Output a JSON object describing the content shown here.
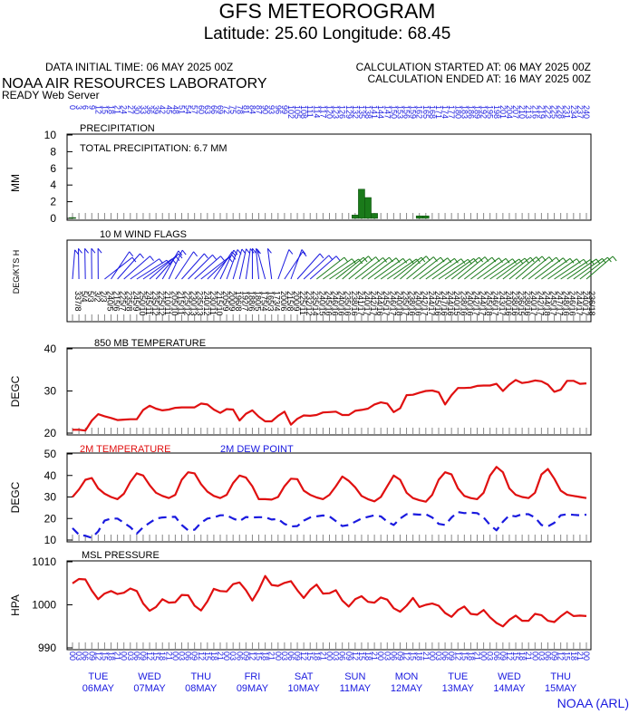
{
  "header": {
    "title": "GFS METEOROGRAM",
    "subtitle": "Latitude: 25.60 Longitude:  68.45",
    "data_initial_time": "DATA INITIAL TIME: 06 MAY 2025 00Z",
    "calc_started": "CALCULATION STARTED AT: 06 MAY 2025 00Z",
    "calc_ended": "CALCULATION ENDED AT: 16 MAY 2025 00Z",
    "lab": "NOAA AIR RESOURCES LABORATORY",
    "server": "READY Web Server",
    "footer": "NOAA (ARL)"
  },
  "forecast_hours": [
    "0",
    "3",
    "6",
    "9",
    "12",
    "15",
    "18",
    "21",
    "24",
    "27",
    "30",
    "33",
    "36",
    "39",
    "42",
    "45",
    "48",
    "51",
    "54",
    "57",
    "60",
    "63",
    "66",
    "69",
    "72",
    "75",
    "78",
    "81",
    "84",
    "87",
    "90",
    "93",
    "96",
    "99",
    "102",
    "105",
    "108",
    "111",
    "114",
    "117",
    "120",
    "123",
    "126",
    "129",
    "132",
    "135",
    "138",
    "141",
    "144",
    "147",
    "150",
    "153",
    "156",
    "159",
    "162",
    "165",
    "168",
    "171",
    "174",
    "177",
    "180",
    "183",
    "186",
    "189",
    "192",
    "195",
    "198",
    "201",
    "204",
    "207",
    "210",
    "213",
    "216",
    "219",
    "222",
    "225",
    "228",
    "231",
    "234",
    "237",
    "240"
  ],
  "utc_hours": [
    "00",
    "03",
    "06",
    "09",
    "12",
    "15",
    "18",
    "21",
    "00",
    "03",
    "06",
    "09",
    "12",
    "15",
    "18",
    "21",
    "00",
    "03",
    "06",
    "09",
    "12",
    "15",
    "18",
    "21",
    "00",
    "03",
    "06",
    "09",
    "12",
    "15",
    "18",
    "21",
    "00",
    "03",
    "06",
    "09",
    "12",
    "15",
    "18",
    "21",
    "00",
    "03",
    "06",
    "09",
    "12",
    "15",
    "18",
    "21",
    "00",
    "03",
    "06",
    "09",
    "12",
    "15",
    "18",
    "21",
    "00",
    "03",
    "06",
    "09",
    "12",
    "15",
    "18",
    "21",
    "00",
    "03",
    "06",
    "09",
    "12",
    "15",
    "18",
    "21",
    "00",
    "03",
    "06",
    "09",
    "12",
    "15",
    "18",
    "21",
    "00"
  ],
  "days": [
    {
      "dow": "TUE",
      "date": "06MAY"
    },
    {
      "dow": "WED",
      "date": "07MAY"
    },
    {
      "dow": "THU",
      "date": "08MAY"
    },
    {
      "dow": "FRI",
      "date": "09MAY"
    },
    {
      "dow": "SAT",
      "date": "10MAY"
    },
    {
      "dow": "SUN",
      "date": "11MAY"
    },
    {
      "dow": "MON",
      "date": "12MAY"
    },
    {
      "dow": "TUE",
      "date": "13MAY"
    },
    {
      "dow": "WED",
      "date": "14MAY"
    },
    {
      "dow": "THU",
      "date": "15MAY"
    }
  ],
  "chart_data": [
    {
      "type": "bar",
      "title": "PRECIPITATION",
      "annotation": "TOTAL PRECIPITATION:   6.7 MM",
      "ylabel": "MM",
      "ylim": [
        0,
        10
      ],
      "yticks": [
        "0",
        "2",
        "4",
        "6",
        "8",
        "10"
      ],
      "color": "#1a7a1a",
      "values": [
        0.1,
        0,
        0,
        0,
        0,
        0,
        0,
        0,
        0,
        0,
        0,
        0,
        0,
        0,
        0,
        0,
        0,
        0,
        0,
        0,
        0,
        0,
        0,
        0,
        0,
        0,
        0,
        0,
        0,
        0,
        0,
        0,
        0,
        0,
        0,
        0,
        0,
        0,
        0,
        0,
        0,
        0,
        0,
        0,
        0.4,
        3.5,
        2.5,
        0.6,
        0,
        0,
        0,
        0,
        0,
        0,
        0.3,
        0.3,
        0,
        0,
        0,
        0,
        0,
        0,
        0,
        0,
        0,
        0,
        0,
        0,
        0,
        0,
        0,
        0,
        0,
        0,
        0,
        0,
        0,
        0,
        0,
        0,
        0
      ]
    },
    {
      "type": "wind_flags",
      "title": "10 M  WIND FLAGS",
      "ylabel": "DEG/KTS  H",
      "colors": {
        "low": "#1a1adf",
        "high": "#1a7a1a"
      },
      "directions": [
        "337",
        "5",
        "5",
        "3",
        "2",
        "240",
        "215",
        "225",
        "235",
        "245",
        "250",
        "245",
        "235",
        "225",
        "210",
        "205",
        "215",
        "225",
        "230",
        "235",
        "240",
        "230",
        "215",
        "205",
        "200",
        "196",
        "192",
        "188",
        "180",
        "175",
        "165",
        "173",
        "200",
        "215",
        "200",
        "225",
        "232",
        "235",
        "240",
        "245",
        "246",
        "240",
        "235",
        "238",
        "241",
        "240",
        "242",
        "244",
        "245",
        "246",
        "240",
        "235",
        "238",
        "240",
        "242",
        "244",
        "245",
        "247",
        "244",
        "240",
        "238",
        "240",
        "242",
        "244",
        "245",
        "246",
        "243",
        "240",
        "238",
        "236",
        "238",
        "240",
        "242",
        "244",
        "245",
        "247",
        "248",
        "246",
        "244",
        "240",
        "236"
      ],
      "speeds": [
        "8",
        "4",
        "3",
        "2",
        "3",
        "5",
        "6",
        "7",
        "8",
        "9",
        "10",
        "11",
        "12",
        "12",
        "11",
        "10",
        "11",
        "12",
        "13",
        "13",
        "12",
        "11",
        "10",
        "9",
        "9",
        "8",
        "7",
        "6",
        "5",
        "4",
        "3",
        "4",
        "6",
        "8",
        "9",
        "11",
        "12",
        "14",
        "15",
        "16",
        "16",
        "16",
        "16",
        "16",
        "17",
        "17",
        "17",
        "16",
        "17",
        "17",
        "18",
        "17",
        "16",
        "16",
        "17",
        "17",
        "16",
        "16",
        "16",
        "15",
        "16",
        "16",
        "17",
        "17",
        "18",
        "17",
        "17",
        "16",
        "16",
        "15",
        "16",
        "17",
        "17",
        "18",
        "17",
        "17",
        "16",
        "16",
        "17",
        "17",
        "18"
      ]
    },
    {
      "type": "line",
      "title": "850 MB  TEMPERATURE",
      "ylabel": "DEGC",
      "ylim": [
        20,
        40
      ],
      "yticks": [
        "20",
        "30",
        "40"
      ],
      "series": [
        {
          "color": "#e01010",
          "values": [
            20.8,
            20.8,
            20.6,
            23.0,
            24.5,
            24.0,
            23.6,
            23.1,
            23.2,
            23.3,
            23.3,
            25.5,
            26.5,
            25.8,
            25.4,
            25.6,
            26.0,
            26.1,
            26.1,
            26.1,
            27.0,
            26.8,
            25.6,
            24.8,
            25.7,
            25.6,
            23.0,
            24.6,
            25.4,
            23.9,
            22.8,
            22.8,
            24.1,
            25.1,
            22.0,
            23.4,
            24.2,
            24.1,
            24.3,
            24.9,
            25.0,
            25.1,
            24.3,
            24.3,
            25.3,
            25.5,
            25.8,
            26.8,
            27.3,
            27.0,
            25.0,
            25.9,
            29.0,
            29.1,
            29.6,
            30.0,
            30.1,
            29.7,
            26.8,
            29.0,
            30.7,
            30.7,
            30.8,
            31.2,
            31.3,
            31.3,
            31.7,
            30.0,
            31.5,
            32.6,
            31.9,
            32.1,
            32.5,
            32.3,
            31.5,
            29.8,
            30.3,
            32.4,
            32.4,
            31.7,
            31.8
          ]
        }
      ]
    },
    {
      "type": "line",
      "ylabel": "DEGC",
      "ylim": [
        10,
        50
      ],
      "yticks": [
        "10",
        "20",
        "30",
        "40",
        "50"
      ],
      "series": [
        {
          "name": "2M TEMPERATURE",
          "color": "#e01010",
          "style": "solid",
          "values": [
            30.0,
            33.5,
            38.0,
            38.8,
            34.0,
            31.5,
            30.0,
            29.0,
            31.5,
            37.0,
            41.0,
            40.0,
            35.5,
            32.0,
            30.5,
            29.5,
            31.0,
            38.0,
            41.5,
            41.0,
            36.0,
            32.5,
            30.5,
            29.5,
            31.0,
            36.5,
            40.0,
            39.0,
            35.0,
            29.0,
            29.0,
            28.8,
            30.0,
            35.0,
            38.5,
            38.3,
            33.0,
            31.0,
            29.8,
            29.0,
            31.0,
            35.0,
            39.5,
            37.5,
            34.5,
            30.5,
            29.0,
            28.0,
            30.0,
            35.0,
            40.0,
            38.0,
            32.0,
            29.5,
            28.5,
            27.8,
            31.0,
            38.0,
            41.5,
            40.5,
            34.0,
            30.5,
            29.5,
            29.0,
            32.0,
            40.0,
            44.0,
            41.5,
            34.0,
            31.0,
            30.0,
            29.5,
            32.0,
            40.5,
            43.0,
            38.5,
            33.0,
            31.0,
            30.5,
            30.0,
            29.5
          ]
        },
        {
          "name": "2M  DEW POINT",
          "color": "#1a1adf",
          "style": "dashed",
          "values": [
            15.5,
            12.5,
            12.0,
            11.0,
            14.0,
            19.0,
            20.0,
            20.0,
            18.0,
            16.0,
            13.0,
            16.0,
            18.0,
            20.0,
            20.5,
            20.7,
            20.8,
            17.0,
            14.5,
            14.8,
            18.0,
            20.0,
            20.5,
            21.5,
            21.5,
            20.0,
            18.8,
            20.7,
            20.5,
            20.6,
            20.6,
            19.5,
            19.8,
            17.5,
            16.3,
            16.5,
            19.0,
            20.5,
            21.0,
            21.4,
            21.0,
            18.8,
            16.5,
            17.0,
            18.5,
            20.0,
            20.8,
            21.5,
            21.0,
            18.5,
            17.0,
            20.0,
            22.0,
            22.0,
            21.8,
            22.0,
            20.5,
            17.5,
            17.0,
            20.5,
            23.0,
            22.5,
            22.7,
            22.5,
            20.5,
            17.0,
            14.5,
            18.5,
            21.5,
            21.0,
            22.0,
            22.0,
            20.5,
            17.0,
            16.3,
            18.0,
            21.5,
            22.0,
            21.7,
            21.5,
            21.8
          ]
        }
      ]
    },
    {
      "type": "line",
      "title": "MSL PRESSURE",
      "ylabel": "HPA",
      "ylim": [
        990,
        1010
      ],
      "yticks": [
        "990",
        "1000",
        "1010"
      ],
      "series": [
        {
          "color": "#e01010",
          "values": [
            1005.0,
            1006.0,
            1005.9,
            1003.3,
            1001.3,
            1002.6,
            1003.2,
            1002.5,
            1002.8,
            1003.8,
            1003.2,
            1000.3,
            998.6,
            999.5,
            1001.3,
            1000.5,
            1000.6,
            1002.3,
            1002.2,
            999.8,
            998.7,
            1000.8,
            1003.7,
            1003.2,
            1003.1,
            1004.8,
            1005.2,
            1003.4,
            1001.0,
            1003.5,
            1006.7,
            1004.6,
            1004.4,
            1005.1,
            1005.5,
            1003.4,
            1001.6,
            1003.5,
            1004.7,
            1002.6,
            1002.7,
            1003.4,
            1001.0,
            999.6,
            1001.3,
            1002.0,
            1000.7,
            1000.5,
            1001.7,
            1001.2,
            999.2,
            998.4,
            999.8,
            1001.6,
            999.5,
            1000.0,
            1000.3,
            999.8,
            998.1,
            997.2,
            998.8,
            999.6,
            997.9,
            997.7,
            998.8,
            997.1,
            995.8,
            995.0,
            996.5,
            997.5,
            996.3,
            996.3,
            997.9,
            997.6,
            996.3,
            996.0,
            997.3,
            998.4,
            997.4,
            997.5,
            997.4
          ]
        }
      ]
    }
  ]
}
